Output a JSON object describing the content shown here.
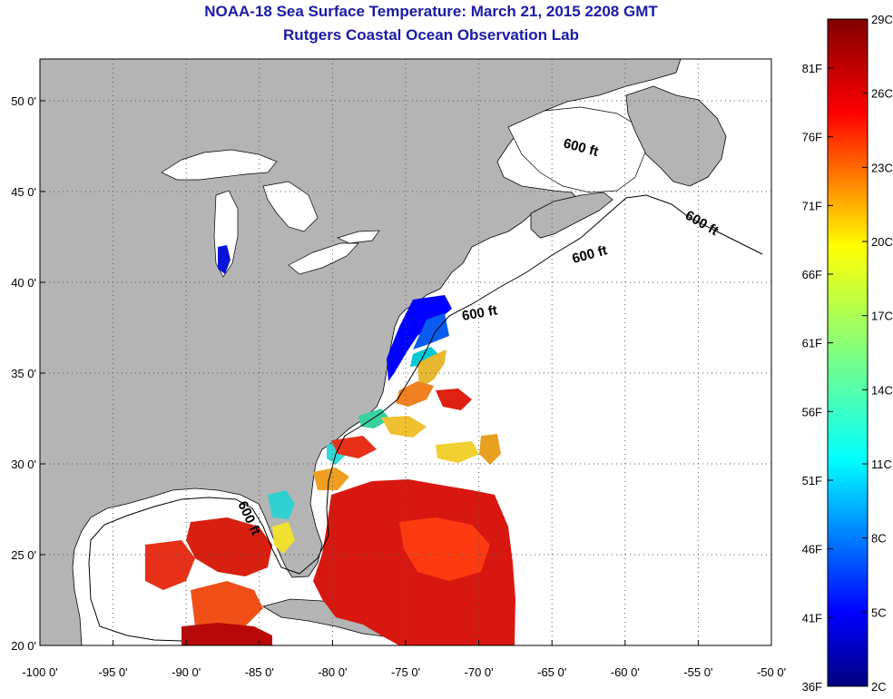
{
  "title": "NOAA-18 Sea Surface Temperature:  March 21, 2015 2208 GMT",
  "subtitle": "Rutgers Coastal Ocean Observation Lab",
  "map": {
    "lon_range": [
      -100,
      -50
    ],
    "lat_range": [
      20,
      52.3
    ],
    "lon_ticks": [
      "-100 0'",
      "-95 0'",
      "-90 0'",
      "-85 0'",
      "-80 0'",
      "-75 0'",
      "-70 0'",
      "-65 0'",
      "-60 0'",
      "-55 0'",
      "-50 0'"
    ],
    "lat_ticks": [
      "20 0'",
      "25 0'",
      "30 0'",
      "35 0'",
      "40 0'",
      "45 0'",
      "50 0'"
    ],
    "contour_label": "600 ft",
    "land_color": "#b4b4b4",
    "cloud_color": "#ffffff",
    "grid": "dotted"
  },
  "colorbar": {
    "celsius_labels": [
      "29C",
      "26C",
      "23C",
      "20C",
      "17C",
      "14C",
      "11C",
      "8C",
      "5C",
      "2C"
    ],
    "fahrenheit_labels": [
      "81F",
      "76F",
      "71F",
      "66F",
      "61F",
      "56F",
      "51F",
      "46F",
      "41F",
      "36F"
    ],
    "colormap": "jet"
  }
}
